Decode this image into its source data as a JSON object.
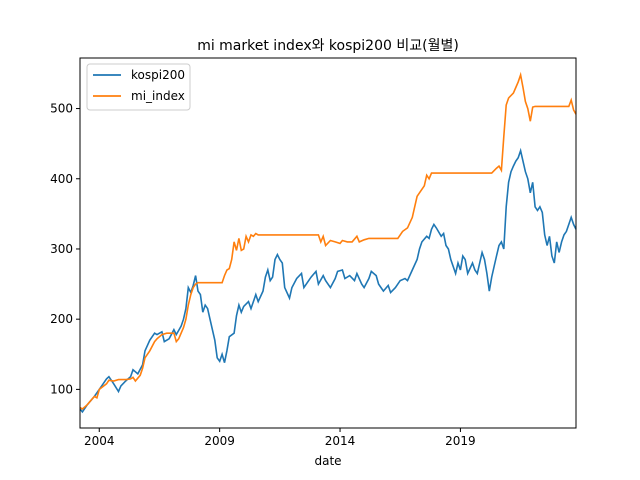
{
  "chart_data": {
    "type": "line",
    "title": "mi market index와 kospi200 비교(월별)",
    "xlabel": "date",
    "ylabel": "",
    "xlim": [
      2003.2,
      2023.8
    ],
    "ylim": [
      45,
      572
    ],
    "x_ticks": [
      {
        "label": "2004",
        "value": 2004
      },
      {
        "label": "2009",
        "value": 2009
      },
      {
        "label": "2014",
        "value": 2014
      },
      {
        "label": "2019",
        "value": 2019
      }
    ],
    "y_ticks": [
      {
        "label": "100",
        "value": 100
      },
      {
        "label": "200",
        "value": 200
      },
      {
        "label": "300",
        "value": 300
      },
      {
        "label": "400",
        "value": 400
      },
      {
        "label": "500",
        "value": 500
      }
    ],
    "grid": false,
    "legend": "top-left",
    "series": [
      {
        "name": "kospi200",
        "color": "#1f77b4",
        "points": [
          [
            2003.2,
            72
          ],
          [
            2003.3,
            68
          ],
          [
            2003.5,
            78
          ],
          [
            2003.8,
            90
          ],
          [
            2003.9,
            95
          ],
          [
            2004.1,
            105
          ],
          [
            2004.3,
            115
          ],
          [
            2004.4,
            118
          ],
          [
            2004.6,
            108
          ],
          [
            2004.8,
            97
          ],
          [
            2004.9,
            105
          ],
          [
            2005.1,
            112
          ],
          [
            2005.3,
            118
          ],
          [
            2005.4,
            128
          ],
          [
            2005.6,
            122
          ],
          [
            2005.8,
            135
          ],
          [
            2005.9,
            155
          ],
          [
            2006.1,
            170
          ],
          [
            2006.3,
            180
          ],
          [
            2006.4,
            178
          ],
          [
            2006.6,
            182
          ],
          [
            2006.7,
            168
          ],
          [
            2006.9,
            172
          ],
          [
            2007.1,
            185
          ],
          [
            2007.2,
            178
          ],
          [
            2007.4,
            190
          ],
          [
            2007.5,
            200
          ],
          [
            2007.6,
            215
          ],
          [
            2007.7,
            245
          ],
          [
            2007.8,
            238
          ],
          [
            2007.9,
            248
          ],
          [
            2008.0,
            262
          ],
          [
            2008.1,
            240
          ],
          [
            2008.2,
            235
          ],
          [
            2008.3,
            210
          ],
          [
            2008.4,
            220
          ],
          [
            2008.5,
            215
          ],
          [
            2008.6,
            200
          ],
          [
            2008.7,
            185
          ],
          [
            2008.8,
            170
          ],
          [
            2008.9,
            145
          ],
          [
            2009.0,
            140
          ],
          [
            2009.1,
            150
          ],
          [
            2009.2,
            138
          ],
          [
            2009.3,
            155
          ],
          [
            2009.4,
            175
          ],
          [
            2009.6,
            180
          ],
          [
            2009.7,
            205
          ],
          [
            2009.8,
            220
          ],
          [
            2009.9,
            210
          ],
          [
            2010.0,
            218
          ],
          [
            2010.2,
            225
          ],
          [
            2010.3,
            215
          ],
          [
            2010.5,
            235
          ],
          [
            2010.6,
            225
          ],
          [
            2010.8,
            240
          ],
          [
            2010.9,
            260
          ],
          [
            2011.0,
            270
          ],
          [
            2011.1,
            255
          ],
          [
            2011.2,
            260
          ],
          [
            2011.3,
            285
          ],
          [
            2011.4,
            292
          ],
          [
            2011.5,
            285
          ],
          [
            2011.6,
            280
          ],
          [
            2011.7,
            245
          ],
          [
            2011.9,
            230
          ],
          [
            2012.0,
            245
          ],
          [
            2012.2,
            258
          ],
          [
            2012.4,
            265
          ],
          [
            2012.5,
            245
          ],
          [
            2012.7,
            255
          ],
          [
            2012.8,
            260
          ],
          [
            2013.0,
            268
          ],
          [
            2013.1,
            250
          ],
          [
            2013.3,
            262
          ],
          [
            2013.4,
            255
          ],
          [
            2013.6,
            245
          ],
          [
            2013.8,
            258
          ],
          [
            2013.9,
            268
          ],
          [
            2014.1,
            270
          ],
          [
            2014.2,
            258
          ],
          [
            2014.4,
            262
          ],
          [
            2014.6,
            255
          ],
          [
            2014.7,
            265
          ],
          [
            2014.9,
            250
          ],
          [
            2015.0,
            245
          ],
          [
            2015.2,
            258
          ],
          [
            2015.3,
            268
          ],
          [
            2015.5,
            262
          ],
          [
            2015.6,
            250
          ],
          [
            2015.8,
            240
          ],
          [
            2016.0,
            248
          ],
          [
            2016.1,
            238
          ],
          [
            2016.3,
            245
          ],
          [
            2016.5,
            255
          ],
          [
            2016.7,
            258
          ],
          [
            2016.8,
            255
          ],
          [
            2017.0,
            270
          ],
          [
            2017.2,
            285
          ],
          [
            2017.3,
            300
          ],
          [
            2017.4,
            310
          ],
          [
            2017.6,
            318
          ],
          [
            2017.7,
            315
          ],
          [
            2017.8,
            328
          ],
          [
            2017.9,
            335
          ],
          [
            2018.0,
            330
          ],
          [
            2018.2,
            318
          ],
          [
            2018.3,
            322
          ],
          [
            2018.4,
            305
          ],
          [
            2018.5,
            300
          ],
          [
            2018.6,
            285
          ],
          [
            2018.7,
            275
          ],
          [
            2018.8,
            265
          ],
          [
            2018.9,
            280
          ],
          [
            2019.0,
            270
          ],
          [
            2019.1,
            290
          ],
          [
            2019.2,
            285
          ],
          [
            2019.3,
            265
          ],
          [
            2019.5,
            280
          ],
          [
            2019.6,
            270
          ],
          [
            2019.7,
            265
          ],
          [
            2019.8,
            280
          ],
          [
            2019.9,
            295
          ],
          [
            2020.0,
            285
          ],
          [
            2020.1,
            265
          ],
          [
            2020.2,
            240
          ],
          [
            2020.3,
            260
          ],
          [
            2020.4,
            275
          ],
          [
            2020.5,
            290
          ],
          [
            2020.6,
            305
          ],
          [
            2020.7,
            310
          ],
          [
            2020.8,
            300
          ],
          [
            2020.9,
            360
          ],
          [
            2021.0,
            395
          ],
          [
            2021.1,
            410
          ],
          [
            2021.2,
            418
          ],
          [
            2021.3,
            425
          ],
          [
            2021.4,
            430
          ],
          [
            2021.5,
            440
          ],
          [
            2021.6,
            425
          ],
          [
            2021.7,
            410
          ],
          [
            2021.8,
            400
          ],
          [
            2021.9,
            380
          ],
          [
            2022.0,
            395
          ],
          [
            2022.1,
            360
          ],
          [
            2022.2,
            355
          ],
          [
            2022.3,
            360
          ],
          [
            2022.4,
            352
          ],
          [
            2022.5,
            320
          ],
          [
            2022.6,
            305
          ],
          [
            2022.7,
            318
          ],
          [
            2022.8,
            290
          ],
          [
            2022.9,
            280
          ],
          [
            2023.0,
            310
          ],
          [
            2023.1,
            295
          ],
          [
            2023.2,
            310
          ],
          [
            2023.3,
            320
          ],
          [
            2023.4,
            325
          ],
          [
            2023.5,
            335
          ],
          [
            2023.6,
            345
          ],
          [
            2023.7,
            335
          ],
          [
            2023.8,
            328
          ]
        ]
      },
      {
        "name": "mi_index",
        "color": "#ff7f0e",
        "points": [
          [
            2003.2,
            74
          ],
          [
            2003.3,
            72
          ],
          [
            2003.5,
            78
          ],
          [
            2003.8,
            90
          ],
          [
            2003.9,
            88
          ],
          [
            2004.0,
            100
          ],
          [
            2004.3,
            108
          ],
          [
            2004.4,
            113
          ],
          [
            2004.6,
            112
          ],
          [
            2004.8,
            114
          ],
          [
            2005.1,
            114
          ],
          [
            2005.3,
            115
          ],
          [
            2005.4,
            117
          ],
          [
            2005.5,
            112
          ],
          [
            2005.7,
            120
          ],
          [
            2005.8,
            130
          ],
          [
            2005.9,
            145
          ],
          [
            2006.1,
            155
          ],
          [
            2006.3,
            168
          ],
          [
            2006.4,
            172
          ],
          [
            2006.6,
            178
          ],
          [
            2006.8,
            180
          ],
          [
            2007.1,
            180
          ],
          [
            2007.2,
            168
          ],
          [
            2007.3,
            172
          ],
          [
            2007.5,
            188
          ],
          [
            2007.6,
            200
          ],
          [
            2007.7,
            220
          ],
          [
            2007.8,
            235
          ],
          [
            2007.9,
            245
          ],
          [
            2008.0,
            250
          ],
          [
            2008.1,
            252
          ],
          [
            2009.1,
            252
          ],
          [
            2009.2,
            262
          ],
          [
            2009.3,
            270
          ],
          [
            2009.4,
            272
          ],
          [
            2009.5,
            285
          ],
          [
            2009.6,
            310
          ],
          [
            2009.7,
            298
          ],
          [
            2009.8,
            315
          ],
          [
            2009.9,
            298
          ],
          [
            2010.0,
            300
          ],
          [
            2010.1,
            318
          ],
          [
            2010.2,
            310
          ],
          [
            2010.3,
            320
          ],
          [
            2010.4,
            318
          ],
          [
            2010.5,
            322
          ],
          [
            2010.6,
            320
          ],
          [
            2010.7,
            320
          ],
          [
            2013.1,
            320
          ],
          [
            2013.2,
            310
          ],
          [
            2013.3,
            318
          ],
          [
            2013.4,
            305
          ],
          [
            2013.6,
            312
          ],
          [
            2013.8,
            310
          ],
          [
            2014.0,
            308
          ],
          [
            2014.1,
            312
          ],
          [
            2014.3,
            310
          ],
          [
            2014.5,
            310
          ],
          [
            2014.7,
            318
          ],
          [
            2014.8,
            310
          ],
          [
            2015.0,
            313
          ],
          [
            2015.2,
            315
          ],
          [
            2016.4,
            315
          ],
          [
            2016.6,
            325
          ],
          [
            2016.8,
            330
          ],
          [
            2017.0,
            345
          ],
          [
            2017.1,
            360
          ],
          [
            2017.2,
            375
          ],
          [
            2017.3,
            380
          ],
          [
            2017.5,
            390
          ],
          [
            2017.6,
            405
          ],
          [
            2017.7,
            400
          ],
          [
            2017.8,
            408
          ],
          [
            2017.9,
            408
          ],
          [
            2020.3,
            408
          ],
          [
            2020.5,
            415
          ],
          [
            2020.6,
            418
          ],
          [
            2020.7,
            412
          ],
          [
            2020.8,
            460
          ],
          [
            2020.9,
            505
          ],
          [
            2021.0,
            515
          ],
          [
            2021.2,
            522
          ],
          [
            2021.3,
            530
          ],
          [
            2021.4,
            538
          ],
          [
            2021.5,
            548
          ],
          [
            2021.6,
            530
          ],
          [
            2021.7,
            510
          ],
          [
            2021.8,
            500
          ],
          [
            2021.9,
            482
          ],
          [
            2022.0,
            502
          ],
          [
            2022.1,
            503
          ],
          [
            2023.5,
            503
          ],
          [
            2023.6,
            512
          ],
          [
            2023.7,
            498
          ],
          [
            2023.8,
            492
          ]
        ]
      }
    ]
  }
}
